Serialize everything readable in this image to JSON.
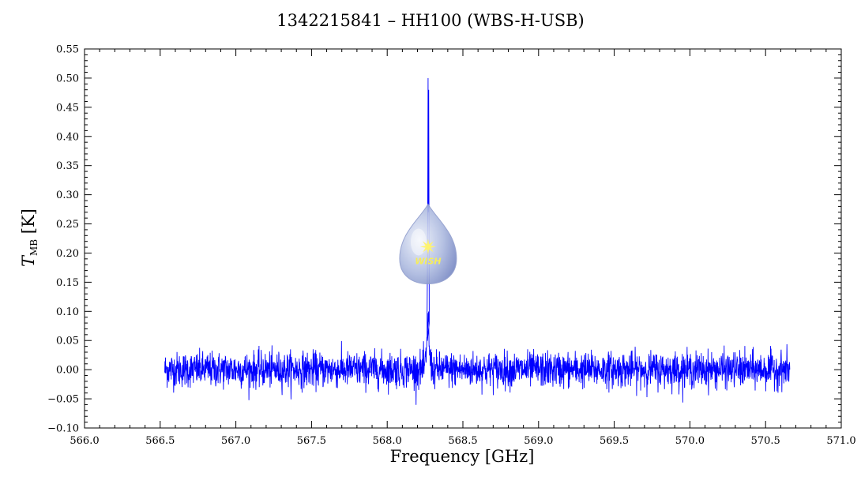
{
  "chart_data": {
    "type": "line",
    "title": "1342215841 – HH100 (WBS-H-USB)",
    "xlabel": "Frequency [GHz]",
    "ylabel": "T",
    "ylabel_sub": "MB",
    "ylabel_unit": " [K]",
    "xlim": [
      566.0,
      571.0
    ],
    "ylim": [
      -0.1,
      0.55
    ],
    "x_ticks": [
      "566.0",
      "566.5",
      "567.0",
      "567.5",
      "568.0",
      "568.5",
      "569.0",
      "569.5",
      "570.0",
      "570.5",
      "571.0"
    ],
    "y_ticks": [
      "−0.10",
      "−0.05",
      "0.00",
      "0.05",
      "0.10",
      "0.15",
      "0.20",
      "0.25",
      "0.30",
      "0.35",
      "0.40",
      "0.45",
      "0.50",
      "0.55"
    ],
    "grid": false,
    "series": [
      {
        "color": "#0000ff",
        "x_range": [
          566.53,
          570.66
        ],
        "noise_rms": 0.015,
        "noise_extremes": [
          -0.07,
          0.065
        ],
        "line_center": 568.27,
        "line_peak": 0.5,
        "line_wing_peak": 0.22
      }
    ],
    "logo": {
      "text": "WISH",
      "x": 568.27,
      "y": 0.2
    }
  }
}
